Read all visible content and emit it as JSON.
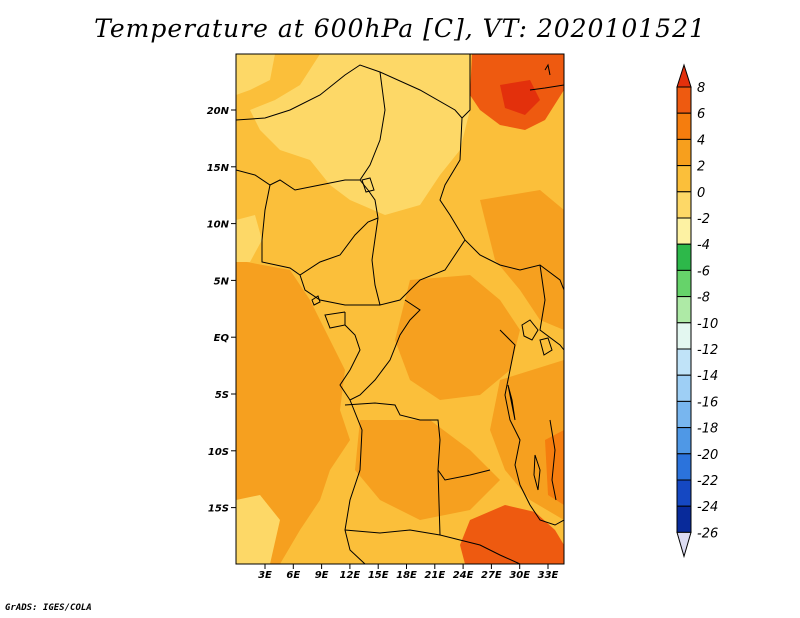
{
  "title": "Temperature at 600hPa [C], VT: 2020101521",
  "credit": "GrADS: IGES/COLA",
  "map": {
    "lat_labels": [
      "20N",
      "15N",
      "10N",
      "5N",
      "EQ",
      "5S",
      "10S",
      "15S"
    ],
    "lon_labels": [
      "3E",
      "6E",
      "9E",
      "12E",
      "15E",
      "18E",
      "21E",
      "24E",
      "27E",
      "30E",
      "33E"
    ]
  },
  "colorbar": {
    "levels": [
      "8",
      "6",
      "4",
      "2",
      "0",
      "-2",
      "-4",
      "-6",
      "-8",
      "-10",
      "-12",
      "-14",
      "-16",
      "-18",
      "-20",
      "-22",
      "-24",
      "-26"
    ],
    "colors": [
      "#e3300c",
      "#ee5a10",
      "#f57d0e",
      "#f79f1d",
      "#fbbf3a",
      "#fdd867",
      "#fdf2a3",
      "#2db84a",
      "#66d36a",
      "#aeeaa6",
      "#e3f7f0",
      "#c0e3f8",
      "#9ecff5",
      "#78b6ef",
      "#4f98e6",
      "#2b73dc",
      "#1548c2",
      "#082a9a",
      "#0a1468",
      "#dcdcf2"
    ]
  },
  "palette": {
    "orange_dark": "#f6a01f",
    "orange_light": "#fbbf3a",
    "yellow": "#fdd867",
    "red": "#ee5a10",
    "deep_red": "#e3300c"
  }
}
